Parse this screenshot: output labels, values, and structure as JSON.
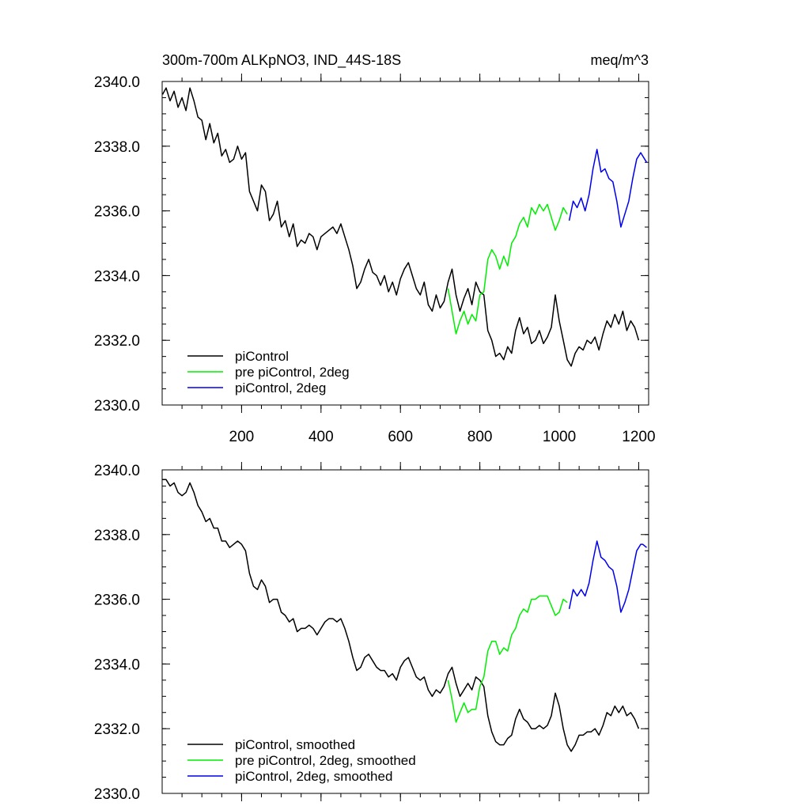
{
  "chart_data": [
    {
      "type": "line",
      "title": "300m-700m ALKpNO3, IND_44S-18S",
      "units": "meq/m^3",
      "xlim": [
        0,
        1225
      ],
      "ylim": [
        2330,
        2340
      ],
      "xticks": [
        200,
        400,
        600,
        800,
        1000,
        1200
      ],
      "xtick_labels": [
        "200",
        "400",
        "600",
        "800",
        "1000",
        "1200"
      ],
      "yticks": [
        2330,
        2332,
        2334,
        2336,
        2338,
        2340
      ],
      "ytick_labels": [
        "2330.0",
        "2332.0",
        "2334.0",
        "2336.0",
        "2338.0",
        "2340.0"
      ],
      "legend_position": "bottom-left",
      "series": [
        {
          "name": "piControl",
          "color": "#000000",
          "x": [
            1,
            10,
            20,
            30,
            40,
            50,
            60,
            70,
            80,
            90,
            100,
            110,
            120,
            130,
            140,
            150,
            160,
            170,
            180,
            190,
            200,
            210,
            220,
            230,
            240,
            250,
            260,
            270,
            280,
            290,
            300,
            310,
            320,
            330,
            340,
            350,
            360,
            370,
            380,
            390,
            400,
            410,
            420,
            430,
            440,
            450,
            460,
            470,
            480,
            490,
            500,
            510,
            520,
            530,
            540,
            550,
            560,
            570,
            580,
            590,
            600,
            610,
            620,
            630,
            640,
            650,
            660,
            670,
            680,
            690,
            700,
            710,
            720,
            730,
            740,
            750,
            760,
            770,
            780,
            790,
            800,
            810,
            820,
            830,
            840,
            850,
            860,
            870,
            880,
            890,
            900,
            910,
            920,
            930,
            940,
            950,
            960,
            970,
            980,
            990,
            1000,
            1010,
            1020,
            1030,
            1040,
            1050,
            1060,
            1070,
            1080,
            1090,
            1100,
            1110,
            1120,
            1130,
            1140,
            1150,
            1160,
            1170,
            1180,
            1190,
            1200
          ],
          "y": [
            2339.6,
            2339.8,
            2339.4,
            2339.7,
            2339.2,
            2339.5,
            2339.1,
            2339.8,
            2339.4,
            2338.9,
            2338.8,
            2338.2,
            2338.7,
            2338.1,
            2338.4,
            2337.7,
            2337.9,
            2337.5,
            2337.6,
            2338.0,
            2337.6,
            2337.8,
            2336.6,
            2336.3,
            2336.0,
            2336.8,
            2336.6,
            2335.7,
            2335.9,
            2336.3,
            2335.5,
            2335.7,
            2335.2,
            2335.6,
            2334.9,
            2335.1,
            2335.0,
            2335.3,
            2335.2,
            2334.8,
            2335.2,
            2335.3,
            2335.4,
            2335.5,
            2335.3,
            2335.6,
            2335.2,
            2334.8,
            2334.3,
            2333.6,
            2333.8,
            2334.2,
            2334.5,
            2334.1,
            2334.0,
            2333.7,
            2334.0,
            2333.5,
            2333.8,
            2333.4,
            2333.9,
            2334.2,
            2334.4,
            2334.0,
            2333.6,
            2333.4,
            2333.8,
            2333.1,
            2332.9,
            2333.4,
            2333.0,
            2333.2,
            2333.8,
            2334.2,
            2333.4,
            2332.9,
            2333.3,
            2333.6,
            2333.1,
            2333.8,
            2333.5,
            2333.4,
            2332.3,
            2332.0,
            2331.5,
            2331.6,
            2331.4,
            2331.8,
            2331.6,
            2332.3,
            2332.7,
            2332.2,
            2332.4,
            2331.9,
            2332.0,
            2332.3,
            2331.9,
            2332.1,
            2332.4,
            2333.4,
            2332.6,
            2332.0,
            2331.4,
            2331.2,
            2331.6,
            2331.8,
            2331.7,
            2332.0,
            2331.9,
            2332.1,
            2331.7,
            2332.2,
            2332.6,
            2332.4,
            2332.8,
            2332.5,
            2332.9,
            2332.3,
            2332.6,
            2332.4,
            2332.0
          ]
        },
        {
          "name": "pre piControl, 2deg",
          "color": "#00ee00",
          "x": [
            720,
            730,
            740,
            750,
            760,
            770,
            780,
            790,
            800,
            810,
            820,
            830,
            840,
            850,
            860,
            870,
            880,
            890,
            900,
            910,
            920,
            930,
            940,
            950,
            960,
            970,
            980,
            990,
            1000,
            1010,
            1020
          ],
          "y": [
            2333.6,
            2332.9,
            2332.2,
            2332.6,
            2332.9,
            2332.5,
            2332.8,
            2332.6,
            2333.4,
            2333.5,
            2334.5,
            2334.8,
            2334.6,
            2334.2,
            2334.6,
            2334.3,
            2335.0,
            2335.2,
            2335.6,
            2335.8,
            2335.5,
            2336.1,
            2335.9,
            2336.2,
            2336.0,
            2336.2,
            2335.8,
            2335.4,
            2335.7,
            2336.1,
            2335.9
          ]
        },
        {
          "name": "piControl, 2deg",
          "color": "#0000ee",
          "x": [
            1025,
            1035,
            1045,
            1055,
            1065,
            1075,
            1085,
            1095,
            1105,
            1115,
            1125,
            1135,
            1145,
            1155,
            1165,
            1175,
            1185,
            1195,
            1205,
            1210,
            1220
          ],
          "y": [
            2335.7,
            2336.3,
            2336.1,
            2336.4,
            2336.0,
            2336.5,
            2337.3,
            2337.9,
            2337.2,
            2337.3,
            2337.0,
            2336.9,
            2336.3,
            2335.5,
            2335.9,
            2336.3,
            2337.0,
            2337.6,
            2337.8,
            2337.7,
            2337.5
          ]
        }
      ]
    },
    {
      "type": "line",
      "title": "",
      "units": "",
      "xlim": [
        0,
        1225
      ],
      "ylim": [
        2330,
        2340
      ],
      "xticks": [
        200,
        400,
        600,
        800,
        1000,
        1200
      ],
      "xtick_labels": [],
      "yticks": [
        2330,
        2332,
        2334,
        2336,
        2338,
        2340
      ],
      "ytick_labels": [
        "2330.0",
        "2332.0",
        "2334.0",
        "2336.0",
        "2338.0",
        "2340.0"
      ],
      "legend_position": "bottom-left",
      "series": [
        {
          "name": "piControl, smoothed",
          "color": "#000000",
          "x": [
            1,
            10,
            20,
            30,
            40,
            50,
            60,
            70,
            80,
            90,
            100,
            110,
            120,
            130,
            140,
            150,
            160,
            170,
            180,
            190,
            200,
            210,
            220,
            230,
            240,
            250,
            260,
            270,
            280,
            290,
            300,
            310,
            320,
            330,
            340,
            350,
            360,
            370,
            380,
            390,
            400,
            410,
            420,
            430,
            440,
            450,
            460,
            470,
            480,
            490,
            500,
            510,
            520,
            530,
            540,
            550,
            560,
            570,
            580,
            590,
            600,
            610,
            620,
            630,
            640,
            650,
            660,
            670,
            680,
            690,
            700,
            710,
            720,
            730,
            740,
            750,
            760,
            770,
            780,
            790,
            800,
            810,
            820,
            830,
            840,
            850,
            860,
            870,
            880,
            890,
            900,
            910,
            920,
            930,
            940,
            950,
            960,
            970,
            980,
            990,
            1000,
            1010,
            1020,
            1030,
            1040,
            1050,
            1060,
            1070,
            1080,
            1090,
            1100,
            1110,
            1120,
            1130,
            1140,
            1150,
            1160,
            1170,
            1180,
            1190,
            1200
          ],
          "y": [
            2339.7,
            2339.7,
            2339.5,
            2339.6,
            2339.3,
            2339.2,
            2339.3,
            2339.6,
            2339.3,
            2338.9,
            2338.7,
            2338.4,
            2338.5,
            2338.2,
            2338.2,
            2337.8,
            2337.8,
            2337.6,
            2337.7,
            2337.8,
            2337.7,
            2337.5,
            2336.8,
            2336.4,
            2336.3,
            2336.6,
            2336.4,
            2335.9,
            2336.0,
            2336.0,
            2335.6,
            2335.5,
            2335.3,
            2335.4,
            2335.0,
            2335.1,
            2335.1,
            2335.2,
            2335.1,
            2334.9,
            2335.1,
            2335.3,
            2335.4,
            2335.4,
            2335.3,
            2335.4,
            2335.1,
            2334.7,
            2334.2,
            2333.8,
            2333.9,
            2334.2,
            2334.3,
            2334.1,
            2333.9,
            2333.8,
            2333.8,
            2333.6,
            2333.7,
            2333.5,
            2333.9,
            2334.1,
            2334.2,
            2333.9,
            2333.6,
            2333.5,
            2333.6,
            2333.2,
            2333.0,
            2333.2,
            2333.1,
            2333.3,
            2333.7,
            2333.9,
            2333.4,
            2333.0,
            2333.2,
            2333.4,
            2333.2,
            2333.6,
            2333.5,
            2333.3,
            2332.4,
            2331.9,
            2331.6,
            2331.5,
            2331.5,
            2331.7,
            2331.8,
            2332.3,
            2332.6,
            2332.3,
            2332.2,
            2332.0,
            2332.0,
            2332.1,
            2332.0,
            2332.1,
            2332.4,
            2333.1,
            2332.7,
            2332.0,
            2331.5,
            2331.3,
            2331.5,
            2331.8,
            2331.8,
            2331.9,
            2331.9,
            2332.0,
            2331.8,
            2332.1,
            2332.5,
            2332.4,
            2332.7,
            2332.5,
            2332.7,
            2332.4,
            2332.5,
            2332.3,
            2332.0
          ]
        },
        {
          "name": "pre piControl, 2deg, smoothed",
          "color": "#00ee00",
          "x": [
            720,
            730,
            740,
            750,
            760,
            770,
            780,
            790,
            800,
            810,
            820,
            830,
            840,
            850,
            860,
            870,
            880,
            890,
            900,
            910,
            920,
            930,
            940,
            950,
            960,
            970,
            980,
            990,
            1000,
            1010,
            1020
          ],
          "y": [
            2333.5,
            2332.9,
            2332.2,
            2332.5,
            2332.8,
            2332.5,
            2332.6,
            2332.6,
            2333.3,
            2333.6,
            2334.4,
            2334.7,
            2334.7,
            2334.3,
            2334.5,
            2334.4,
            2334.9,
            2335.1,
            2335.5,
            2335.7,
            2335.6,
            2336.0,
            2336.0,
            2336.1,
            2336.1,
            2336.1,
            2335.8,
            2335.5,
            2335.6,
            2336.0,
            2335.9
          ]
        },
        {
          "name": "piControl, 2deg, smoothed",
          "color": "#0000ee",
          "x": [
            1025,
            1035,
            1045,
            1055,
            1065,
            1075,
            1085,
            1095,
            1105,
            1115,
            1125,
            1135,
            1145,
            1155,
            1165,
            1175,
            1185,
            1195,
            1205,
            1210,
            1220
          ],
          "y": [
            2335.7,
            2336.3,
            2336.1,
            2336.3,
            2336.1,
            2336.5,
            2337.2,
            2337.8,
            2337.3,
            2337.2,
            2337.0,
            2336.9,
            2336.4,
            2335.6,
            2335.9,
            2336.3,
            2336.9,
            2337.5,
            2337.7,
            2337.7,
            2337.6
          ]
        }
      ]
    }
  ]
}
